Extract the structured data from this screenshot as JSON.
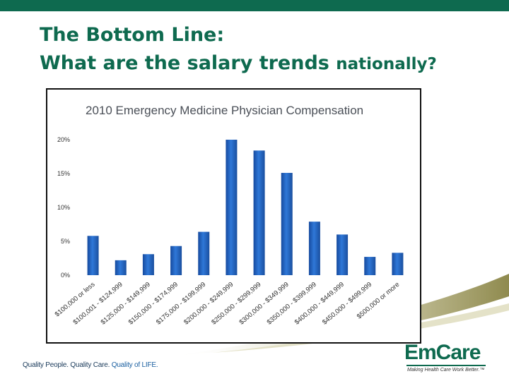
{
  "slide": {
    "title_line1": "The Bottom Line:",
    "title_line2_main": "What are the salary trends ",
    "title_line2_small": "nationally?",
    "footer_part1": "Quality People. Quality Care. ",
    "footer_part2": "Quality of LIFE.",
    "logo_text": "EmCare",
    "logo_tagline": "Making Health Care Work Better.™",
    "colors": {
      "brand_green": "#0e6a4f",
      "bar_blue": "#1f5fbf"
    }
  },
  "chart_data": {
    "type": "bar",
    "title": "2010 Emergency Medicine Physician Compensation",
    "categories": [
      "$100,000 or less",
      "$100,001 - $124,999",
      "$125,000 - $149,999",
      "$150,000 - $174,999",
      "$175,000 - $199,999",
      "$200,000 - $249,999",
      "$250,000 - $299,999",
      "$300,000 - $349,999",
      "$350,000 - $399,999",
      "$400,000 - $449,999",
      "$450,000 - $499,999",
      "$500,000 or more"
    ],
    "values": [
      5.8,
      2.2,
      3.1,
      4.3,
      6.4,
      20.0,
      18.4,
      15.1,
      7.9,
      6.0,
      2.7,
      3.3
    ],
    "yticks": [
      "0%",
      "5%",
      "10%",
      "15%",
      "20%"
    ],
    "ylim": [
      0,
      20
    ],
    "grid": false,
    "legend": "none"
  }
}
